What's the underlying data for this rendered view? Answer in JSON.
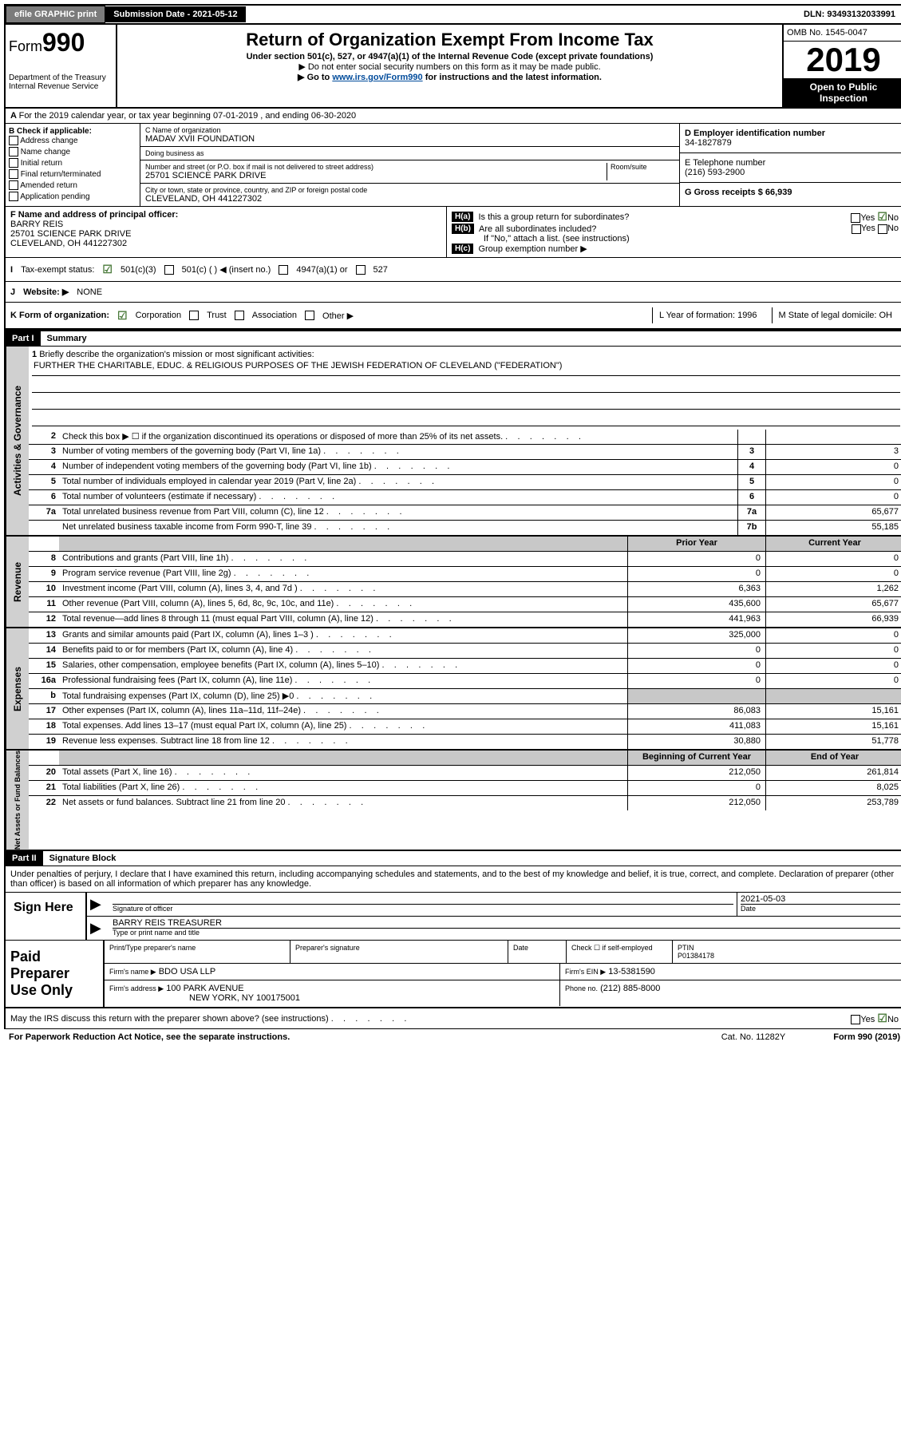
{
  "topbar": {
    "efile": "efile GRAPHIC print",
    "submission_label": "Submission Date - 2021-05-12",
    "dln": "DLN: 93493132033991"
  },
  "header": {
    "form_prefix": "Form",
    "form_number": "990",
    "dept": "Department of the Treasury\nInternal Revenue Service",
    "title": "Return of Organization Exempt From Income Tax",
    "subtitle": "Under section 501(c), 527, or 4947(a)(1) of the Internal Revenue Code (except private foundations)",
    "instr1": "▶ Do not enter social security numbers on this form as it may be made public.",
    "instr2_pre": "▶ Go to ",
    "instr2_link": "www.irs.gov/Form990",
    "instr2_post": " for instructions and the latest information.",
    "omb": "OMB No. 1545-0047",
    "year": "2019",
    "inspection": "Open to Public Inspection"
  },
  "row_a": "For the 2019 calendar year, or tax year beginning 07-01-2019      , and ending 06-30-2020",
  "col_b": {
    "label": "B Check if applicable:",
    "opts": [
      "Address change",
      "Name change",
      "Initial return",
      "Final return/terminated",
      "Amended return",
      "Application pending"
    ]
  },
  "col_c": {
    "name_label": "C Name of organization",
    "name": "MADAV XVII FOUNDATION",
    "dba_label": "Doing business as",
    "dba": "",
    "addr_label": "Number and street (or P.O. box if mail is not delivered to street address)",
    "room_label": "Room/suite",
    "addr": "25701 SCIENCE PARK DRIVE",
    "city_label": "City or town, state or province, country, and ZIP or foreign postal code",
    "city": "CLEVELAND, OH  441227302"
  },
  "col_d": {
    "ein_label": "D Employer identification number",
    "ein": "34-1827879",
    "phone_label": "E Telephone number",
    "phone": "(216) 593-2900",
    "gross_label": "G Gross receipts $ 66,939"
  },
  "officer": {
    "label": "F  Name and address of principal officer:",
    "name": "BARRY REIS",
    "addr1": "25701 SCIENCE PARK DRIVE",
    "addr2": "CLEVELAND, OH  441227302"
  },
  "h": {
    "a": "Is this a group return for subordinates?",
    "b": "Are all subordinates included?",
    "b2": "If \"No,\" attach a list. (see instructions)",
    "c": "Group exemption number ▶"
  },
  "status": {
    "label": "Tax-exempt status:",
    "opt1": "501(c)(3)",
    "opt2": "501(c) (  ) ◀ (insert no.)",
    "opt3": "4947(a)(1) or",
    "opt4": "527"
  },
  "website": {
    "label": "Website: ▶",
    "value": "NONE"
  },
  "k": {
    "label": "K Form of organization:",
    "opts": [
      "Corporation",
      "Trust",
      "Association",
      "Other ▶"
    ],
    "l": "L Year of formation: 1996",
    "m": "M State of legal domicile: OH"
  },
  "part1": {
    "tag": "Part I",
    "title": "Summary"
  },
  "mission": {
    "num": "1",
    "label": "Briefly describe the organization's mission or most significant activities:",
    "text": "FURTHER THE CHARITABLE, EDUC. & RELIGIOUS PURPOSES OF THE JEWISH FEDERATION OF CLEVELAND (\"FEDERATION\")"
  },
  "gov_rows": [
    {
      "num": "2",
      "desc": "Check this box ▶ ☐  if the organization discontinued its operations or disposed of more than 25% of its net assets.",
      "box": "",
      "val": ""
    },
    {
      "num": "3",
      "desc": "Number of voting members of the governing body (Part VI, line 1a)",
      "box": "3",
      "val": "3"
    },
    {
      "num": "4",
      "desc": "Number of independent voting members of the governing body (Part VI, line 1b)",
      "box": "4",
      "val": "0"
    },
    {
      "num": "5",
      "desc": "Total number of individuals employed in calendar year 2019 (Part V, line 2a)",
      "box": "5",
      "val": "0"
    },
    {
      "num": "6",
      "desc": "Total number of volunteers (estimate if necessary)",
      "box": "6",
      "val": "0"
    },
    {
      "num": "7a",
      "desc": "Total unrelated business revenue from Part VIII, column (C), line 12",
      "box": "7a",
      "val": "65,677"
    },
    {
      "num": "",
      "desc": "Net unrelated business taxable income from Form 990-T, line 39",
      "box": "7b",
      "val": "55,185"
    }
  ],
  "rev_header": {
    "prior": "Prior Year",
    "curr": "Current Year"
  },
  "rev_rows": [
    {
      "num": "8",
      "desc": "Contributions and grants (Part VIII, line 1h)",
      "prior": "0",
      "curr": "0"
    },
    {
      "num": "9",
      "desc": "Program service revenue (Part VIII, line 2g)",
      "prior": "0",
      "curr": "0"
    },
    {
      "num": "10",
      "desc": "Investment income (Part VIII, column (A), lines 3, 4, and 7d )",
      "prior": "6,363",
      "curr": "1,262"
    },
    {
      "num": "11",
      "desc": "Other revenue (Part VIII, column (A), lines 5, 6d, 8c, 9c, 10c, and 11e)",
      "prior": "435,600",
      "curr": "65,677"
    },
    {
      "num": "12",
      "desc": "Total revenue—add lines 8 through 11 (must equal Part VIII, column (A), line 12)",
      "prior": "441,963",
      "curr": "66,939"
    }
  ],
  "exp_rows": [
    {
      "num": "13",
      "desc": "Grants and similar amounts paid (Part IX, column (A), lines 1–3 )",
      "prior": "325,000",
      "curr": "0"
    },
    {
      "num": "14",
      "desc": "Benefits paid to or for members (Part IX, column (A), line 4)",
      "prior": "0",
      "curr": "0"
    },
    {
      "num": "15",
      "desc": "Salaries, other compensation, employee benefits (Part IX, column (A), lines 5–10)",
      "prior": "0",
      "curr": "0"
    },
    {
      "num": "16a",
      "desc": "Professional fundraising fees (Part IX, column (A), line 11e)",
      "prior": "0",
      "curr": "0"
    },
    {
      "num": "b",
      "desc": "Total fundraising expenses (Part IX, column (D), line 25) ▶0",
      "prior": "",
      "curr": "",
      "shaded": true
    },
    {
      "num": "17",
      "desc": "Other expenses (Part IX, column (A), lines 11a–11d, 11f–24e)",
      "prior": "86,083",
      "curr": "15,161"
    },
    {
      "num": "18",
      "desc": "Total expenses. Add lines 13–17 (must equal Part IX, column (A), line 25)",
      "prior": "411,083",
      "curr": "15,161"
    },
    {
      "num": "19",
      "desc": "Revenue less expenses. Subtract line 18 from line 12",
      "prior": "30,880",
      "curr": "51,778"
    }
  ],
  "net_header": {
    "prior": "Beginning of Current Year",
    "curr": "End of Year"
  },
  "net_rows": [
    {
      "num": "20",
      "desc": "Total assets (Part X, line 16)",
      "prior": "212,050",
      "curr": "261,814"
    },
    {
      "num": "21",
      "desc": "Total liabilities (Part X, line 26)",
      "prior": "0",
      "curr": "8,025"
    },
    {
      "num": "22",
      "desc": "Net assets or fund balances. Subtract line 21 from line 20",
      "prior": "212,050",
      "curr": "253,789"
    }
  ],
  "part2": {
    "tag": "Part II",
    "title": "Signature Block"
  },
  "perjury": "Under penalties of perjury, I declare that I have examined this return, including accompanying schedules and statements, and to the best of my knowledge and belief, it is true, correct, and complete. Declaration of preparer (other than officer) is based on all information of which preparer has any knowledge.",
  "sign": {
    "label": "Sign Here",
    "sig_label": "Signature of officer",
    "date": "2021-05-03",
    "date_label": "Date",
    "name": "BARRY REIS  TREASURER",
    "name_label": "Type or print name and title"
  },
  "paid": {
    "label": "Paid Preparer Use Only",
    "h1": "Print/Type preparer's name",
    "h2": "Preparer's signature",
    "h3": "Date",
    "h4": "Check ☐ if self-employed",
    "h5_label": "PTIN",
    "h5": "P01384178",
    "firm_label": "Firm's name      ▶",
    "firm": "BDO USA LLP",
    "ein_label": "Firm's EIN ▶",
    "ein": "13-5381590",
    "addr_label": "Firm's address  ▶",
    "addr1": "100 PARK AVENUE",
    "addr2": "NEW YORK, NY  100175001",
    "phone_label": "Phone no.",
    "phone": "(212) 885-8000"
  },
  "discuss": "May the IRS discuss this return with the preparer shown above? (see instructions)",
  "footer": {
    "paperwork": "For Paperwork Reduction Act Notice, see the separate instructions.",
    "cat": "Cat. No. 11282Y",
    "form": "Form 990 (2019)"
  }
}
